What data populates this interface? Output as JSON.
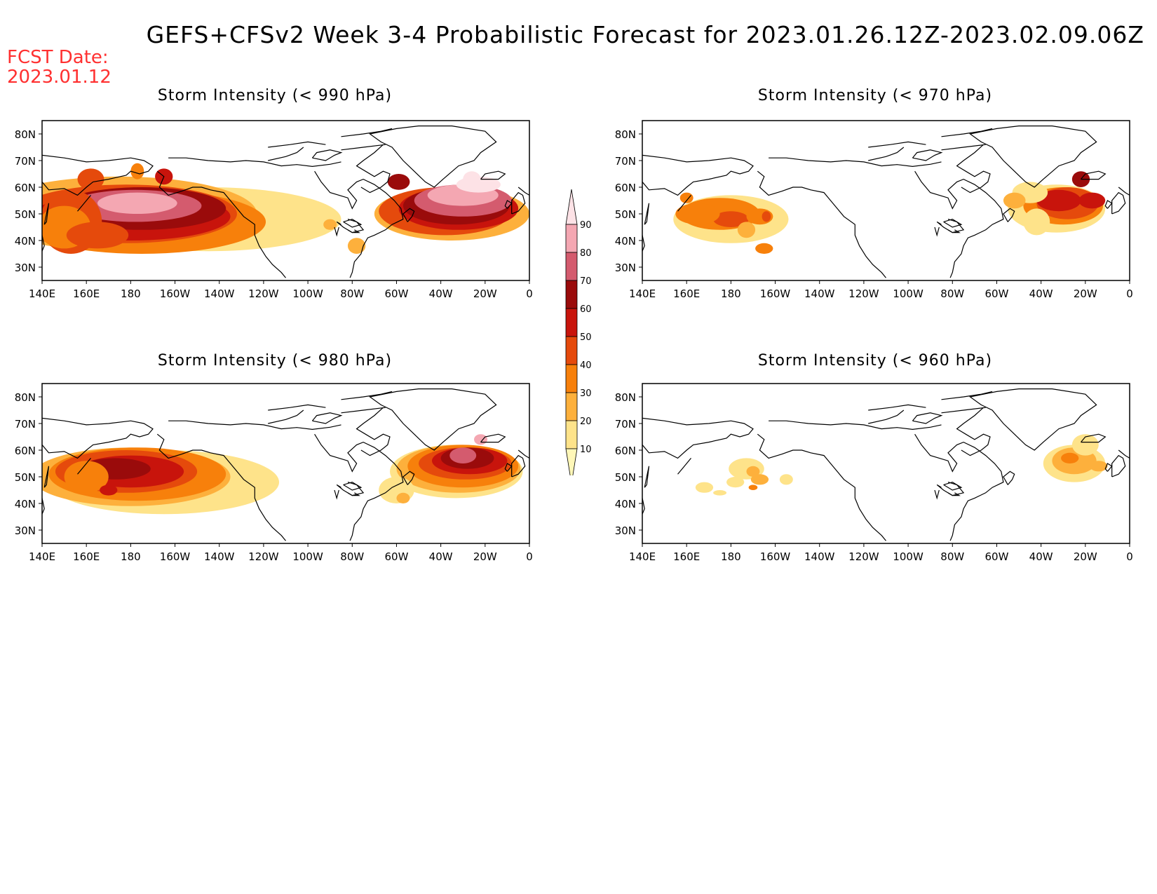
{
  "title": "GEFS+CFSv2 Week 3-4 Probabilistic Forecast for 2023.01.26.12Z-2023.02.09.06Z",
  "fcst_label": "FCST Date:",
  "fcst_date": "2023.01.12",
  "panels": [
    {
      "title": "Storm Intensity (< 990 hPa)"
    },
    {
      "title": "Storm Intensity (< 970 hPa)"
    },
    {
      "title": "Storm Intensity (< 980 hPa)"
    },
    {
      "title": "Storm Intensity (< 960 hPa)"
    }
  ],
  "x_ticks": [
    "140E",
    "160E",
    "180",
    "160W",
    "140W",
    "120W",
    "100W",
    "80W",
    "60W",
    "40W",
    "20W",
    "0"
  ],
  "y_ticks": [
    "80N",
    "70N",
    "60N",
    "50N",
    "40N",
    "30N"
  ],
  "colorbar": {
    "levels": [
      "10",
      "20",
      "30",
      "40",
      "50",
      "60",
      "70",
      "80",
      "90"
    ],
    "colors": [
      "#fff7b8",
      "#fee38a",
      "#fdb03c",
      "#f7800b",
      "#e54a0c",
      "#c8140c",
      "#9a0b0b",
      "#d45b6e",
      "#f4a7b2",
      "#fde2e6"
    ]
  }
}
